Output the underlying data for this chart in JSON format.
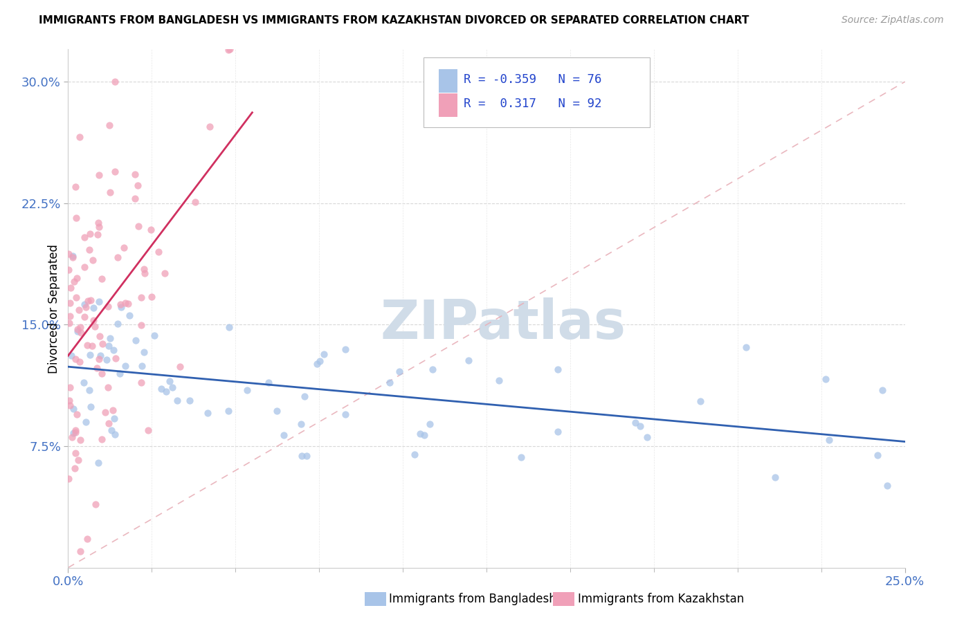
{
  "title": "IMMIGRANTS FROM BANGLADESH VS IMMIGRANTS FROM KAZAKHSTAN DIVORCED OR SEPARATED CORRELATION CHART",
  "source": "Source: ZipAtlas.com",
  "ylabel": "Divorced or Separated",
  "yticks": [
    "7.5%",
    "15.0%",
    "22.5%",
    "30.0%"
  ],
  "ytick_vals": [
    0.075,
    0.15,
    0.225,
    0.3
  ],
  "xlim": [
    0.0,
    0.25
  ],
  "ylim": [
    0.0,
    0.32
  ],
  "legend_bangladesh_R": "-0.359",
  "legend_bangladesh_N": "76",
  "legend_kazakhstan_R": "0.317",
  "legend_kazakhstan_N": "92",
  "color_bangladesh": "#a8c4e8",
  "color_kazakhstan": "#f0a0b8",
  "line_color_bangladesh": "#3060b0",
  "line_color_kazakhstan": "#d03060",
  "diag_color": "#e8b0b8",
  "watermark_color": "#d0dce8"
}
